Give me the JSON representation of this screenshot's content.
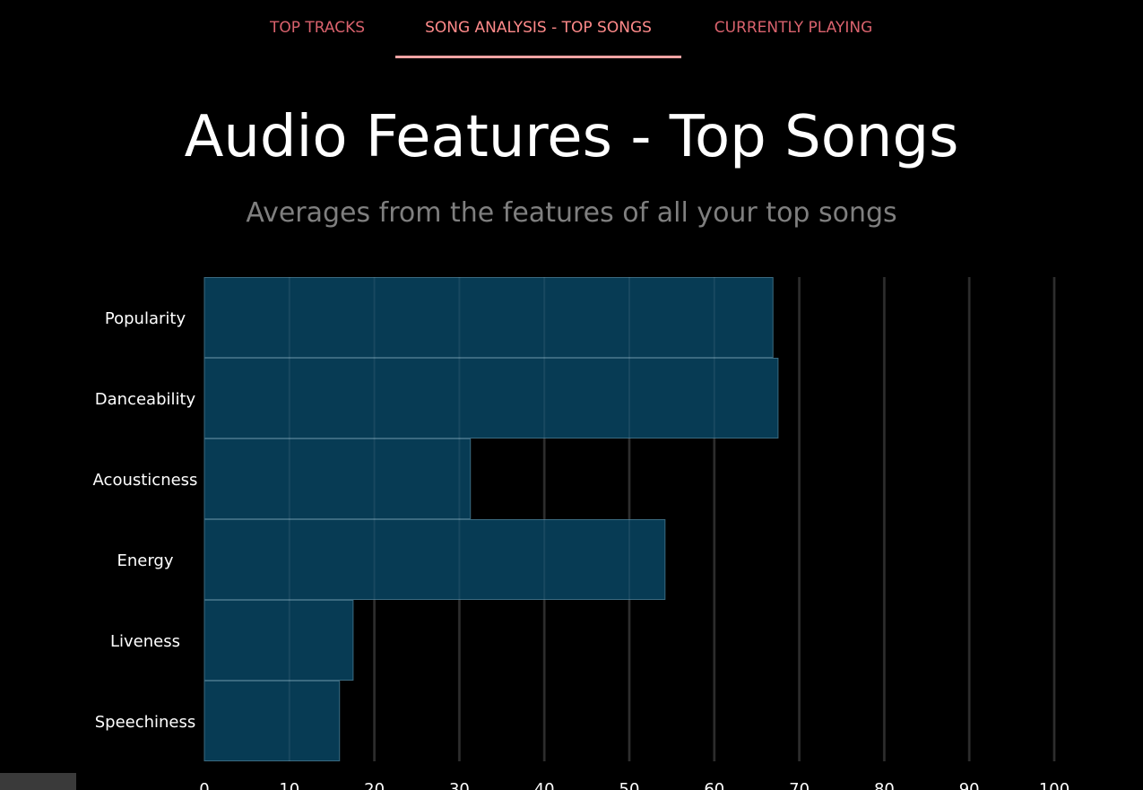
{
  "nav": {
    "tabs": [
      {
        "label": "TOP TRACKS",
        "active": false
      },
      {
        "label": "SONG ANALYSIS - TOP SONGS",
        "active": true
      },
      {
        "label": "CURRENTLY PLAYING",
        "active": false
      }
    ]
  },
  "header": {
    "title": "Audio Features - Top Songs",
    "subtitle": "Averages from the features of all your top songs"
  },
  "chart_data": {
    "type": "bar",
    "orientation": "horizontal",
    "categories": [
      "Popularity",
      "Danceability",
      "Acousticness",
      "Energy",
      "Liveness",
      "Speechiness"
    ],
    "values": [
      66.9,
      67.5,
      31.3,
      54.2,
      17.5,
      15.9
    ],
    "xlim": [
      0,
      100
    ],
    "xticks": [
      0,
      10,
      20,
      30,
      40,
      50,
      60,
      70,
      80,
      90,
      100
    ],
    "grid": true,
    "bar_color": "#073b54",
    "bar_border_color": "#3b6a80",
    "grid_color": "#1f1f1f"
  }
}
